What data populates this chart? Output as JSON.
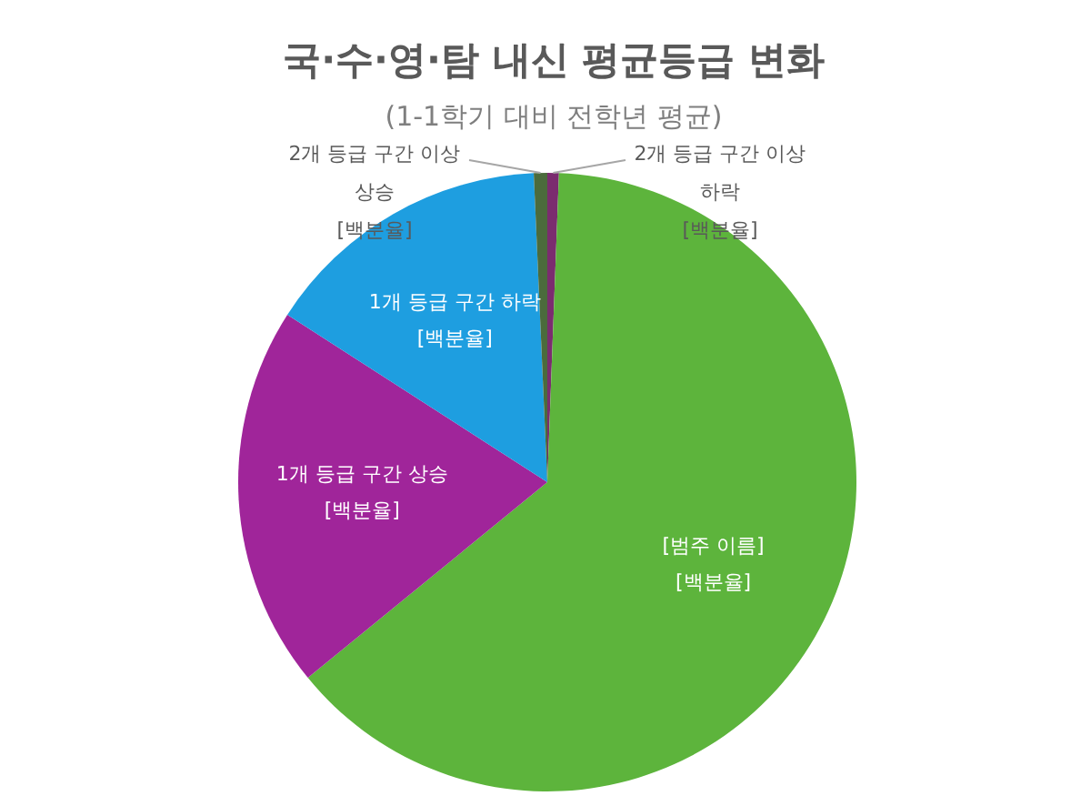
{
  "chart_data": {
    "type": "pie",
    "title": "국·수·영·탐 내신 평균등급 변화",
    "subtitle": "(1-1학기 대비 전학년 평균)",
    "categories": [
      "2개 등급 구간 이상 하락",
      "[범주 이름]",
      "1개 등급 구간 상승",
      "1개 등급 구간 하락",
      "2개 등급 구간 이상 상승"
    ],
    "values": [
      0.6,
      63.5,
      20,
      15.2,
      0.7
    ],
    "colors": [
      "#7b2c6f",
      "#5db43c",
      "#a0259a",
      "#1e9ee0",
      "#4b6b3c"
    ],
    "value_labels": [
      "[백분율]",
      "[백분율]",
      "[백분율]",
      "[백분율]",
      "[백분율]"
    ]
  }
}
